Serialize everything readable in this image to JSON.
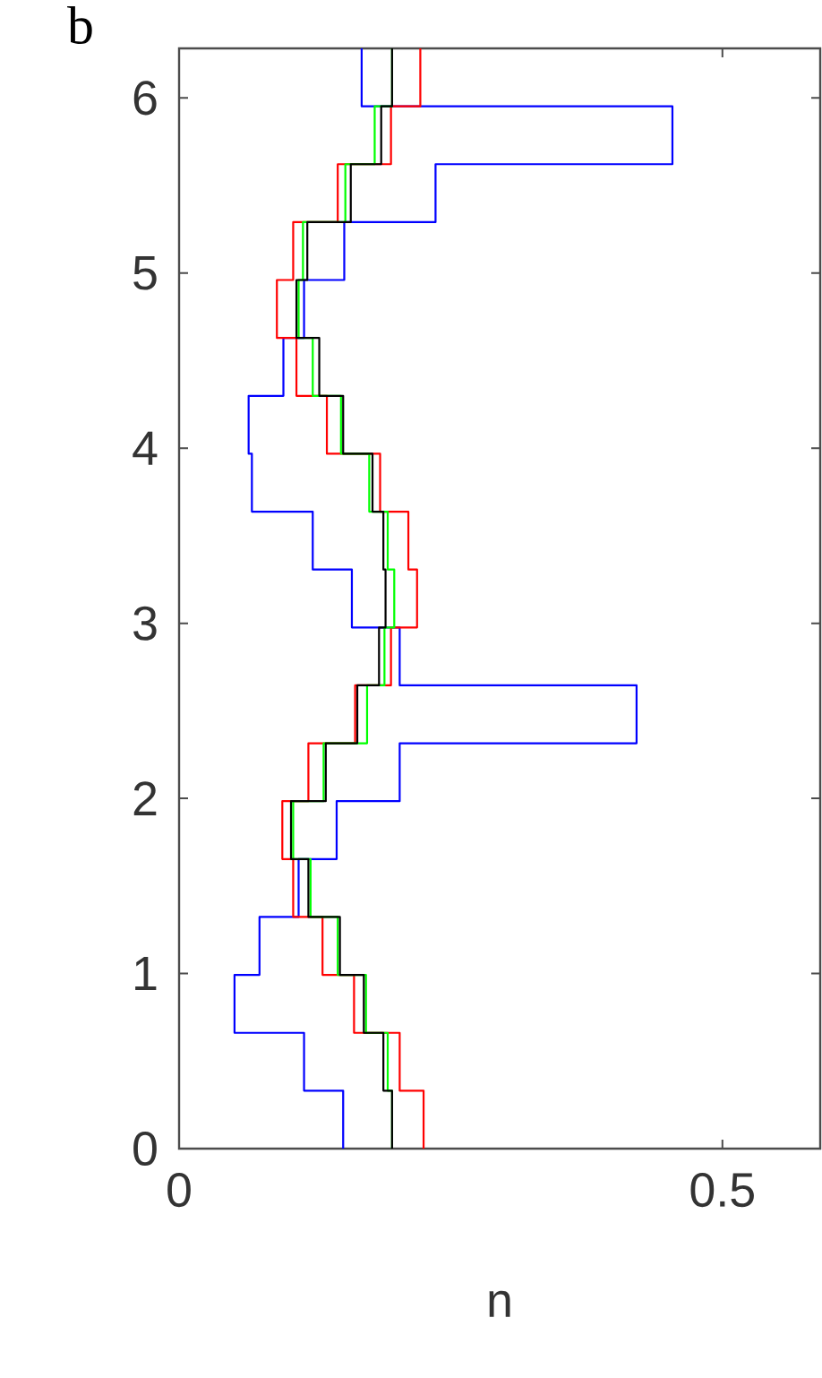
{
  "chart_data": {
    "type": "histogram",
    "orientation": "horizontal",
    "xlabel": "n",
    "annotations": [
      "b"
    ],
    "bins": [
      0,
      0.3307,
      0.6614,
      0.9921,
      1.3228,
      1.6535,
      1.9842,
      2.3149,
      2.6456,
      2.9762,
      3.3069,
      3.6376,
      3.9683,
      4.299,
      4.6297,
      4.9604,
      5.2911,
      5.6218,
      5.9525,
      6.2832
    ],
    "series": [
      {
        "color": "#0000ff",
        "values": [
          0.151,
          0.115,
          0.051,
          0.074,
          0.11,
          0.145,
          0.203,
          0.421,
          0.203,
          0.159,
          0.123,
          0.067,
          0.064,
          0.096,
          0.115,
          0.152,
          0.236,
          0.454,
          0.168
        ]
      },
      {
        "color": "#ff0000",
        "values": [
          0.225,
          0.203,
          0.161,
          0.132,
          0.105,
          0.095,
          0.119,
          0.162,
          0.195,
          0.219,
          0.211,
          0.185,
          0.136,
          0.108,
          0.09,
          0.105,
          0.146,
          0.195,
          0.222
        ]
      },
      {
        "color": "#00ff00",
        "values": [
          0.196,
          0.192,
          0.172,
          0.146,
          0.121,
          0.105,
          0.133,
          0.173,
          0.189,
          0.198,
          0.192,
          0.175,
          0.149,
          0.123,
          0.11,
          0.114,
          0.153,
          0.18,
          0.196
        ]
      },
      {
        "color": "#000000",
        "values": [
          0.196,
          0.188,
          0.17,
          0.148,
          0.119,
          0.103,
          0.135,
          0.164,
          0.184,
          0.19,
          0.188,
          0.178,
          0.151,
          0.129,
          0.108,
          0.118,
          0.158,
          0.186,
          0.196
        ]
      }
    ],
    "xlim": [
      0,
      0.59
    ],
    "ylim": [
      0,
      6.2832
    ],
    "xticks": [
      0,
      0.5
    ],
    "yticks": [
      0,
      1,
      2,
      3,
      4,
      5,
      6
    ],
    "grid": false
  }
}
